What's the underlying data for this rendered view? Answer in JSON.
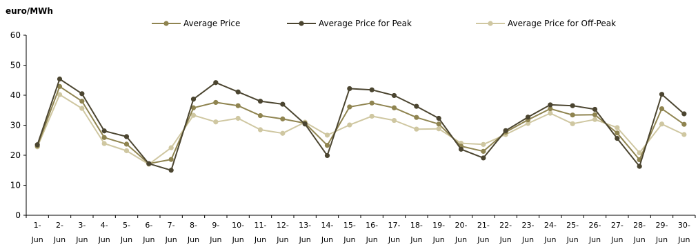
{
  "chart_data": {
    "type": "line",
    "unit_label": "euro/MWh",
    "categories": [
      "1-Jun",
      "2-Jun",
      "3-Jun",
      "4-Jun",
      "5-Jun",
      "6-Jun",
      "7-Jun",
      "8-Jun",
      "9-Jun",
      "10-Jun",
      "11-Jun",
      "12-Jun",
      "13-Jun",
      "14-Jun",
      "15-Jun",
      "16-Jun",
      "17-Jun",
      "18-Jun",
      "19-Jun",
      "20-Jun",
      "21-Jun",
      "22-Jun",
      "23-Jun",
      "24-Jun",
      "25-Jun",
      "26-Jun",
      "27-Jun",
      "28-Jun",
      "29-Jun",
      "30-Jun"
    ],
    "category_lines": [
      [
        "1-",
        "Jun"
      ],
      [
        "2-",
        "Jun"
      ],
      [
        "3-",
        "Jun"
      ],
      [
        "4-",
        "Jun"
      ],
      [
        "5-",
        "Jun"
      ],
      [
        "6-",
        "Jun"
      ],
      [
        "7-",
        "Jun"
      ],
      [
        "8-",
        "Jun"
      ],
      [
        "9-",
        "Jun"
      ],
      [
        "10-",
        "Jun"
      ],
      [
        "11-",
        "Jun"
      ],
      [
        "12-",
        "Jun"
      ],
      [
        "13-",
        "Jun"
      ],
      [
        "14-",
        "Jun"
      ],
      [
        "15-",
        "Jun"
      ],
      [
        "16-",
        "Jun"
      ],
      [
        "17-",
        "Jun"
      ],
      [
        "18-",
        "Jun"
      ],
      [
        "19-",
        "Jun"
      ],
      [
        "20-",
        "Jun"
      ],
      [
        "21-",
        "Jun"
      ],
      [
        "22-",
        "Jun"
      ],
      [
        "23-",
        "Jun"
      ],
      [
        "24-",
        "Jun"
      ],
      [
        "25-",
        "Jun"
      ],
      [
        "26-",
        "Jun"
      ],
      [
        "27-",
        "Jun"
      ],
      [
        "28-",
        "Jun"
      ],
      [
        "29-",
        "Jun"
      ],
      [
        "30-",
        "Jun"
      ]
    ],
    "ylim": [
      0,
      60
    ],
    "yticks": [
      0,
      10,
      20,
      30,
      40,
      50,
      60
    ],
    "grid": false,
    "legend_position": "top",
    "series": [
      {
        "name": "Average Price",
        "color": "#8f8450",
        "values": [
          23.1,
          42.9,
          38.0,
          25.9,
          23.7,
          17.2,
          18.6,
          35.8,
          37.6,
          36.5,
          33.2,
          32.1,
          30.7,
          23.3,
          36.1,
          37.4,
          35.8,
          32.6,
          30.4,
          23.0,
          21.3,
          27.7,
          31.8,
          35.5,
          33.4,
          33.5,
          27.4,
          18.5,
          35.5,
          30.3
        ]
      },
      {
        "name": "Average Price for Peak",
        "color": "#4b4530",
        "values": [
          23.5,
          45.4,
          40.5,
          28.1,
          26.2,
          17.2,
          15.0,
          38.7,
          44.2,
          41.1,
          38.0,
          37.0,
          30.4,
          19.9,
          42.2,
          41.8,
          39.9,
          36.3,
          32.3,
          22.0,
          19.1,
          28.2,
          32.7,
          36.8,
          36.5,
          35.3,
          25.6,
          16.3,
          40.3,
          33.8
        ]
      },
      {
        "name": "Average Price for Off-Peak",
        "color": "#cfc7a1",
        "values": [
          22.8,
          40.2,
          35.6,
          23.9,
          21.5,
          17.0,
          22.5,
          33.3,
          31.1,
          32.3,
          28.5,
          27.3,
          31.0,
          26.7,
          30.1,
          33.0,
          31.6,
          28.7,
          28.8,
          24.0,
          23.6,
          26.9,
          30.6,
          34.0,
          30.5,
          31.9,
          29.2,
          20.8,
          30.4,
          26.9
        ]
      }
    ]
  }
}
